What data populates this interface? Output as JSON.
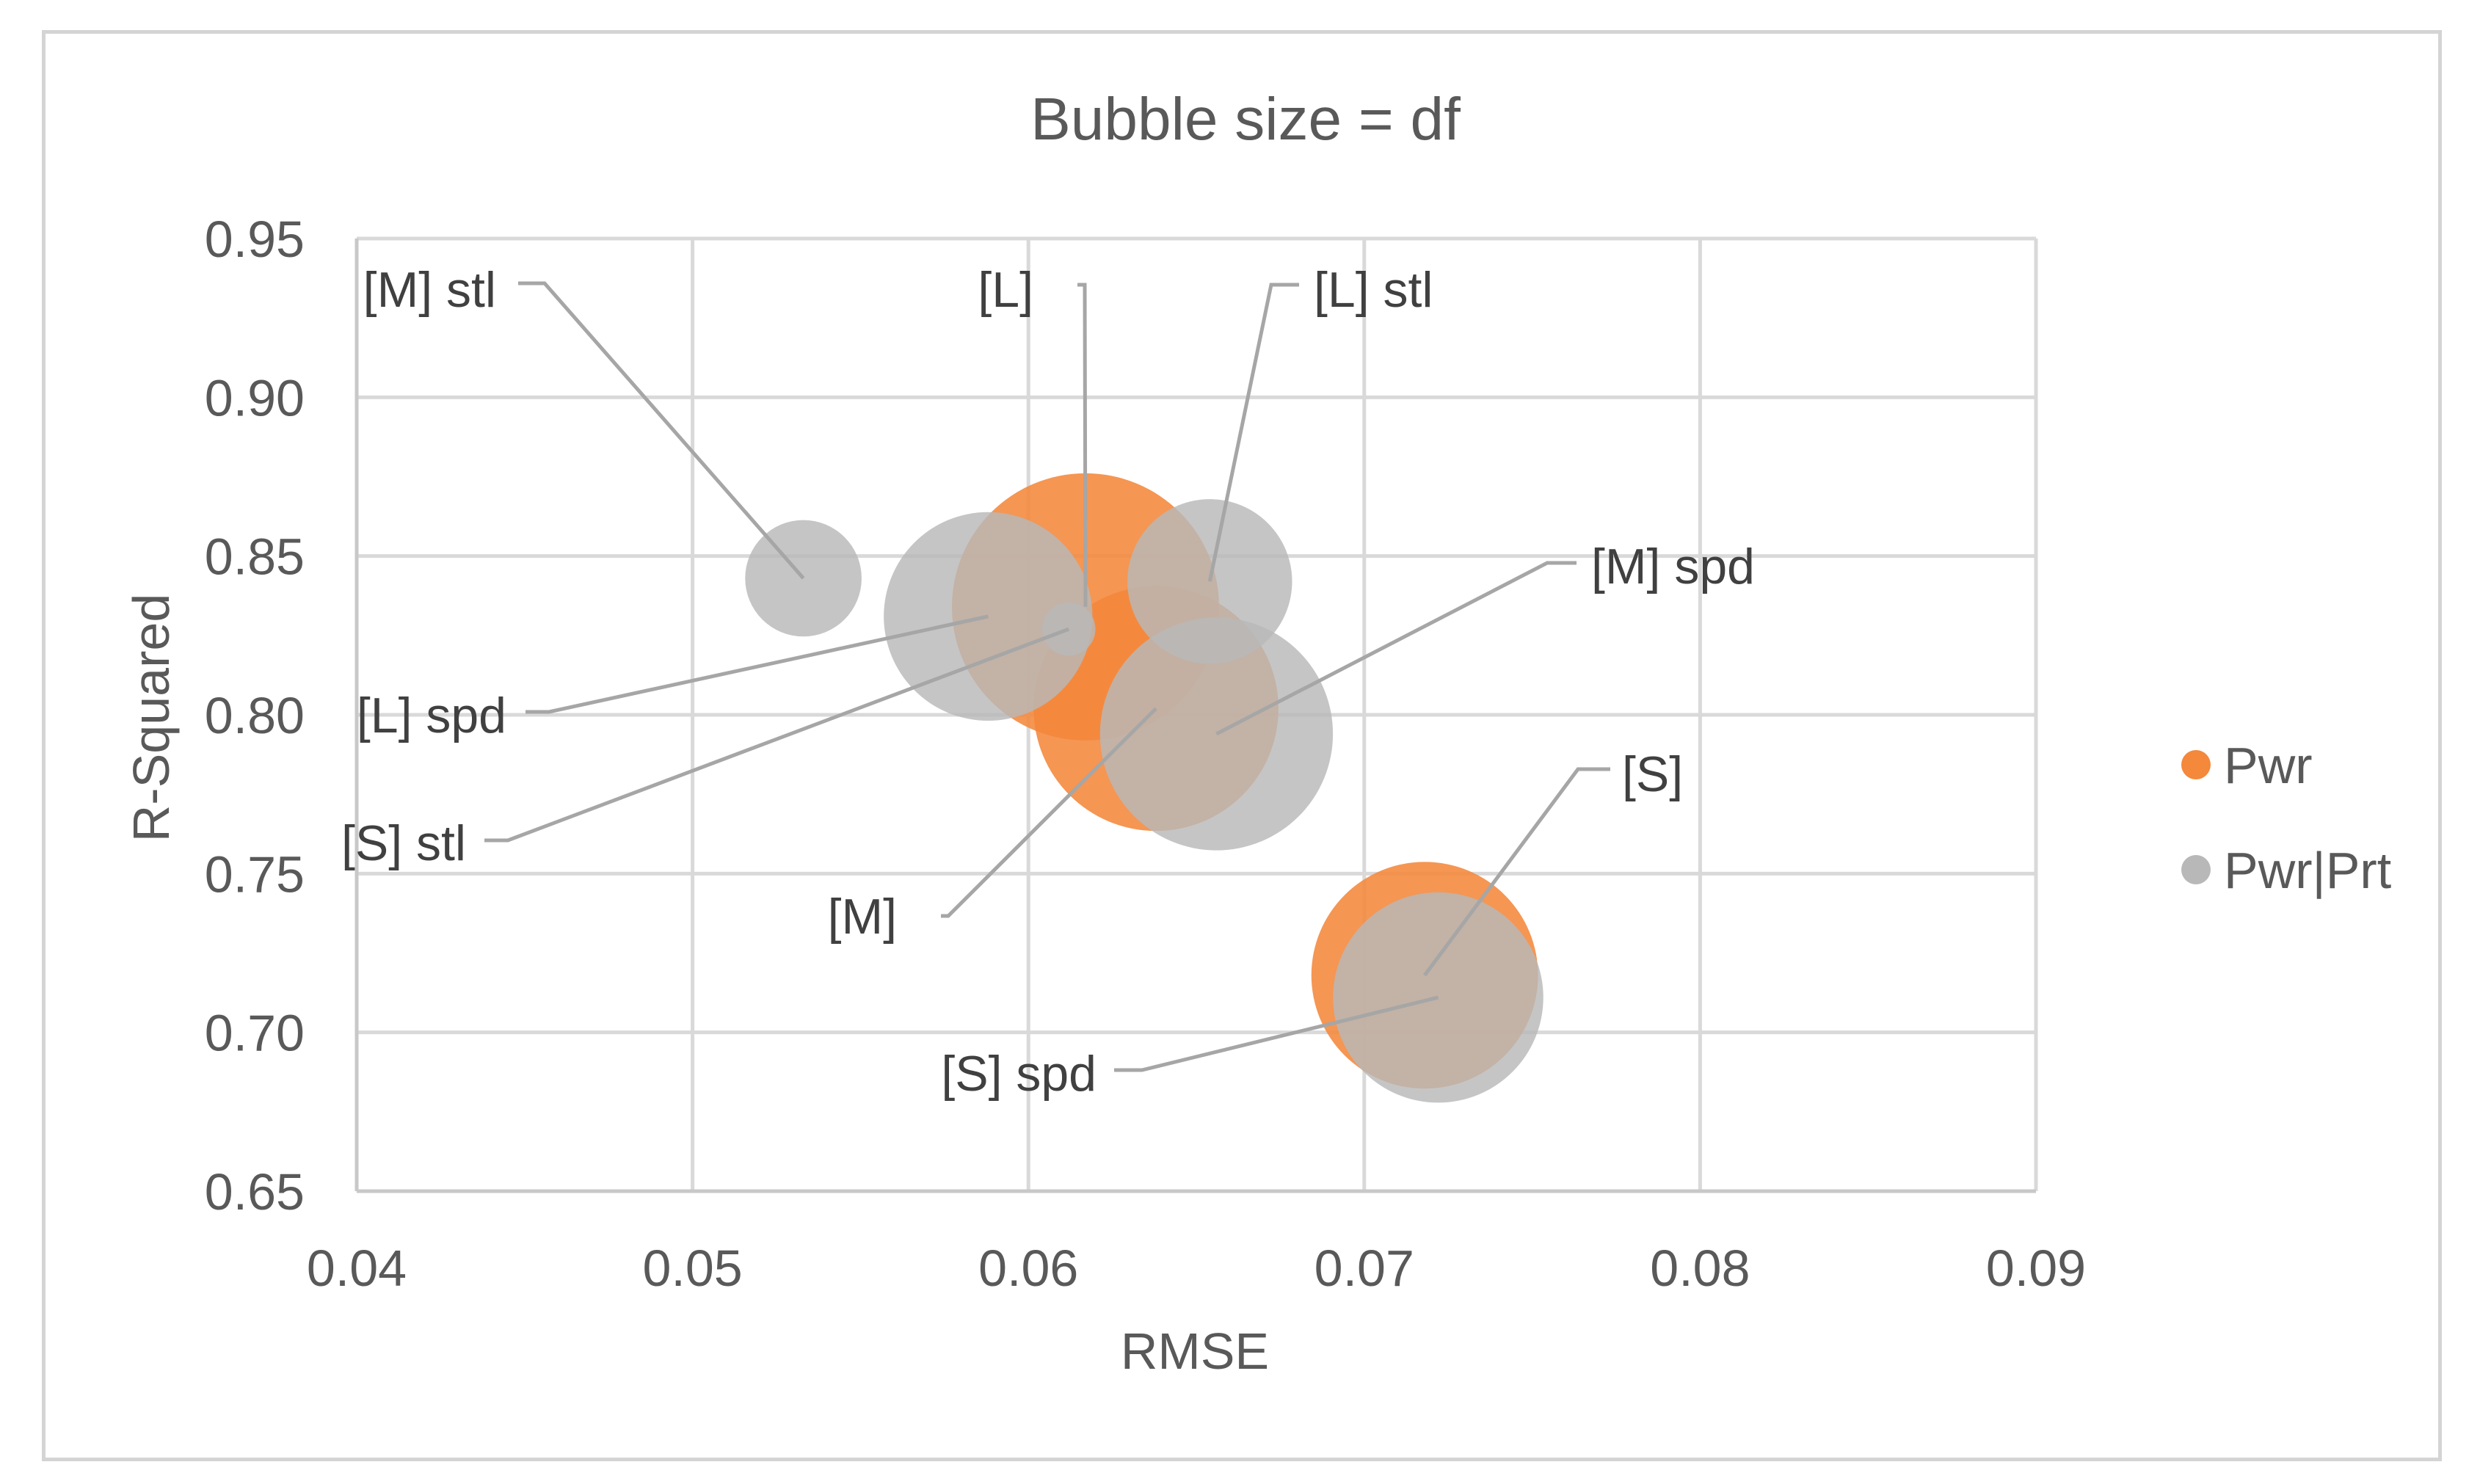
{
  "chart_data": {
    "type": "bubble",
    "title": "Bubble size = df",
    "xlabel": "RMSE",
    "ylabel": "R-Squared",
    "xlim": [
      0.04,
      0.09
    ],
    "ylim": [
      0.65,
      0.95
    ],
    "x_ticks": [
      "0.04",
      "0.05",
      "0.06",
      "0.07",
      "0.08",
      "0.09"
    ],
    "y_ticks": [
      "0.65",
      "0.70",
      "0.75",
      "0.80",
      "0.85",
      "0.90",
      "0.95"
    ],
    "grid": true,
    "legend_position": "right",
    "bubble_size_meaning": "df",
    "series": [
      {
        "name": "Pwr",
        "color": "#F4883B",
        "points": [
          {
            "label": "[L]",
            "x": 0.0617,
            "y": 0.834,
            "size": 1.0
          },
          {
            "label": "[M]",
            "x": 0.0638,
            "y": 0.802,
            "size": 0.84
          },
          {
            "label": "[S]",
            "x": 0.0718,
            "y": 0.718,
            "size": 0.72
          }
        ]
      },
      {
        "name": "Pwr|Prt",
        "color": "#B8B8B8",
        "points": [
          {
            "label": "[M] stl",
            "x": 0.0533,
            "y": 0.843,
            "size": 0.19
          },
          {
            "label": "[L] spd",
            "x": 0.0588,
            "y": 0.831,
            "size": 0.61
          },
          {
            "label": "[S] stl",
            "x": 0.0612,
            "y": 0.827,
            "size": 0.04
          },
          {
            "label": "[L] stl",
            "x": 0.0654,
            "y": 0.842,
            "size": 0.38
          },
          {
            "label": "[M] spd",
            "x": 0.0656,
            "y": 0.794,
            "size": 0.76
          },
          {
            "label": "[S] spd",
            "x": 0.0722,
            "y": 0.711,
            "size": 0.62
          }
        ]
      }
    ]
  }
}
